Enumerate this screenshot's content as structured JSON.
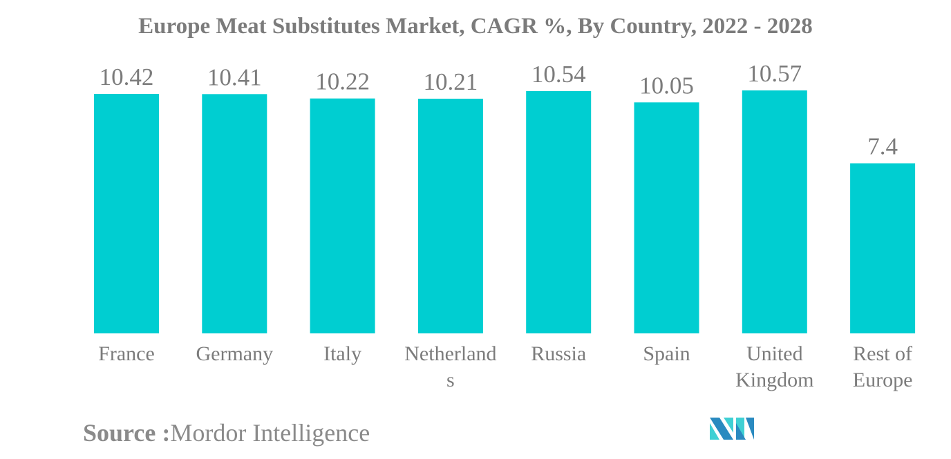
{
  "chart_data": {
    "type": "bar",
    "title": "Europe Meat Substitutes Market, CAGR %, By Country, 2022 - 2028",
    "categories": [
      "France",
      "Germany",
      "Italy",
      "Netherlands",
      "Russia",
      "Spain",
      "United Kingdom",
      "Rest of Europe"
    ],
    "category_label_lines": [
      [
        "France"
      ],
      [
        "Germany"
      ],
      [
        "Italy"
      ],
      [
        "Netherland",
        "s"
      ],
      [
        "Russia"
      ],
      [
        "Spain"
      ],
      [
        "United",
        "Kingdom"
      ],
      [
        "Rest of",
        "Europe"
      ]
    ],
    "values": [
      10.42,
      10.41,
      10.22,
      10.21,
      10.54,
      10.05,
      10.57,
      7.4
    ],
    "data_labels": [
      "10.42",
      "10.41",
      "10.22",
      "10.21",
      "10.54",
      "10.05",
      "10.57",
      "7.4"
    ],
    "xlabel": "",
    "ylabel": "",
    "ylim": [
      0,
      11
    ],
    "grid": false,
    "bar_color": "#00ced1",
    "label_color": "#7b7b7b"
  },
  "source": {
    "label": "Source :",
    "value": "Mordor Intelligence"
  },
  "logo": {
    "name": "mordor-intelligence-logo",
    "colors": [
      "#2a8ac0",
      "#3fd0d4"
    ]
  }
}
